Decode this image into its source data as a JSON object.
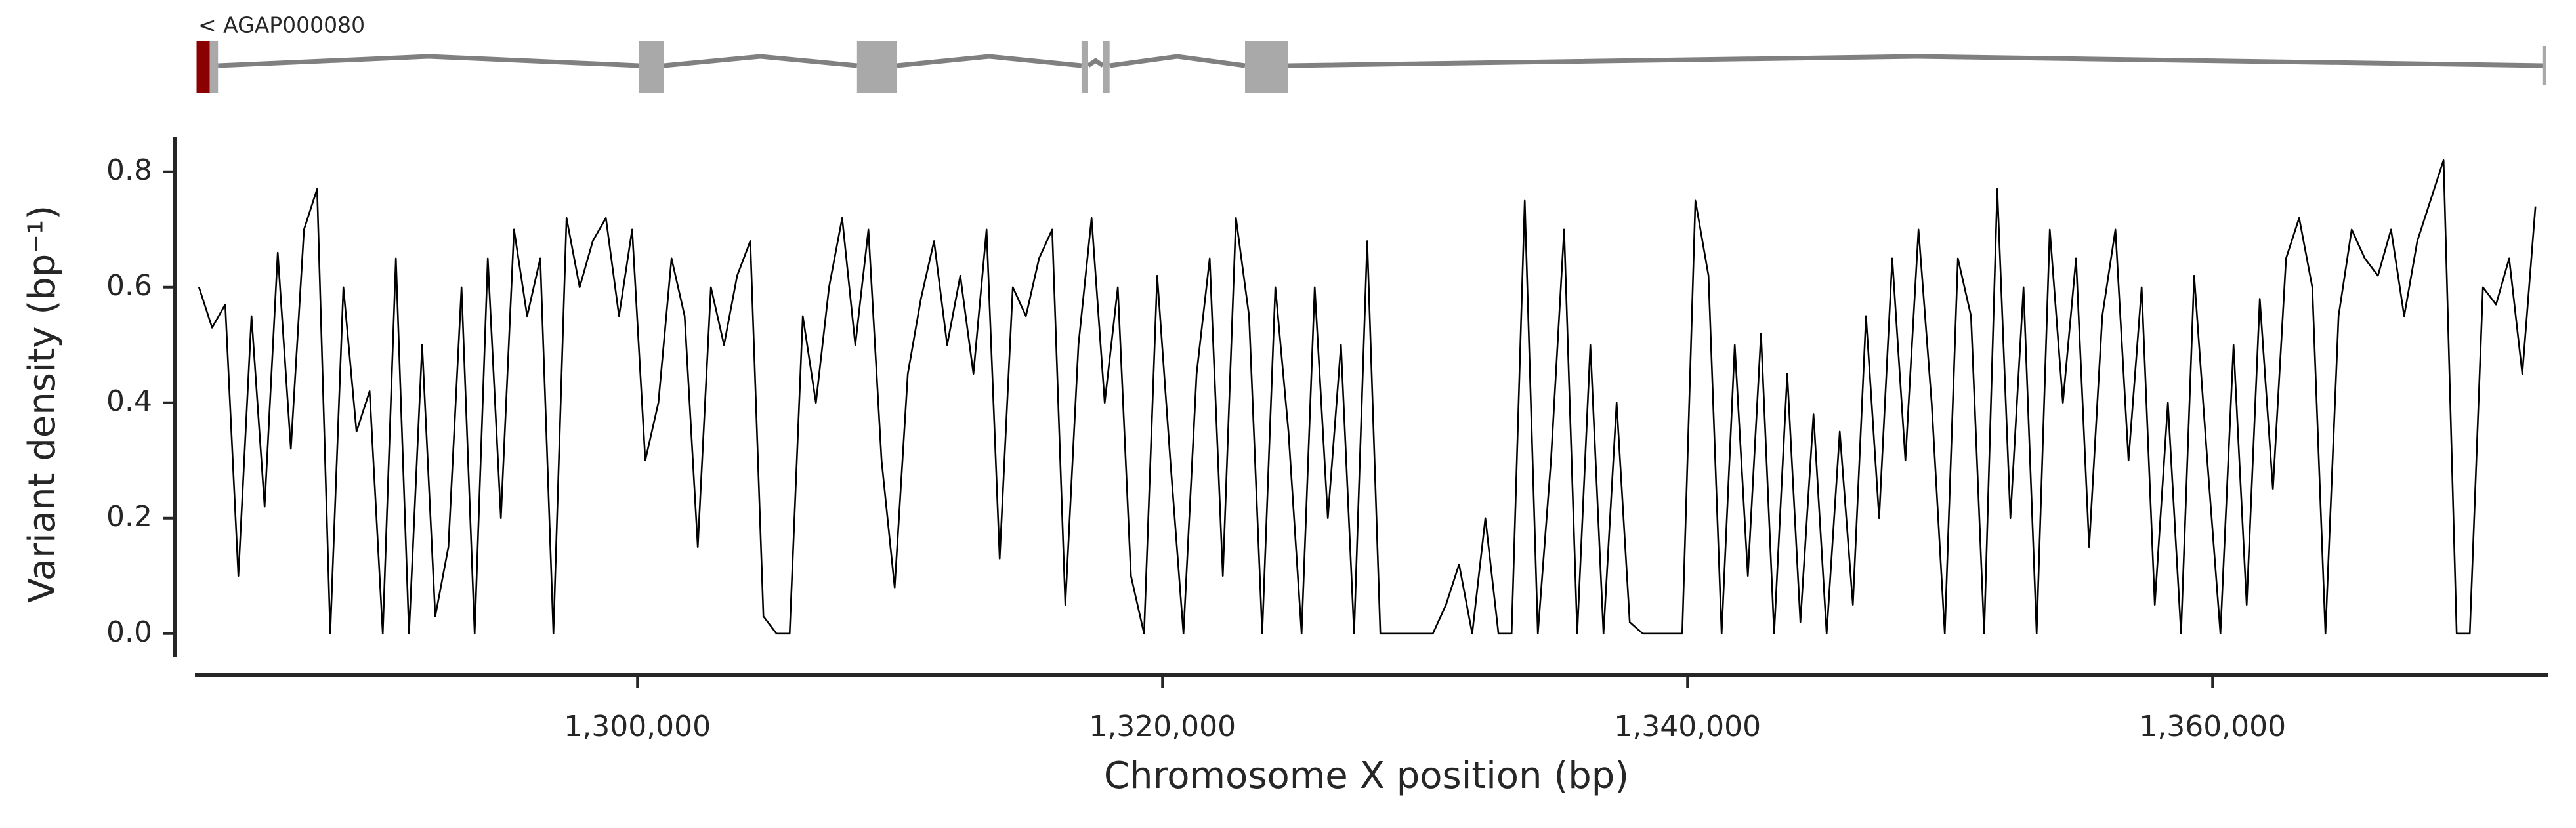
{
  "gene": {
    "label": "< AGAP000080",
    "start": 1283208,
    "end": 1372640,
    "line_color": "#808080",
    "exon_color": "#a9a9a9",
    "utr_color": "#8b0000",
    "exons": [
      [
        1283208,
        1283711
      ],
      [
        1283711,
        1284025
      ],
      [
        1300063,
        1301007
      ],
      [
        1308365,
        1309875
      ],
      [
        1316918,
        1317170
      ],
      [
        1317736,
        1317987
      ],
      [
        1323145,
        1324780
      ]
    ],
    "exon_kinds": [
      "utr",
      "exon",
      "exon",
      "exon",
      "exon",
      "exon",
      "exon"
    ]
  },
  "chart_data": {
    "type": "line",
    "xlabel": "Chromosome X position (bp)",
    "ylabel": "Variant density (bp⁻¹)",
    "xlim": [
      1283145,
      1372770
    ],
    "ylim": [
      -0.04,
      0.86
    ],
    "xticks": [
      {
        "value": 1300000,
        "label": "1,300,000"
      },
      {
        "value": 1320000,
        "label": "1,320,000"
      },
      {
        "value": 1340000,
        "label": "1,340,000"
      },
      {
        "value": 1360000,
        "label": "1,360,000"
      }
    ],
    "yticks": [
      {
        "value": 0,
        "label": "0.0"
      },
      {
        "value": 0.2,
        "label": "0.2"
      },
      {
        "value": 0.4,
        "label": "0.4"
      },
      {
        "value": 0.6,
        "label": "0.6"
      },
      {
        "value": 0.8,
        "label": "0.8"
      }
    ],
    "grid": false,
    "x": [
      1283300,
      1283800,
      1284300,
      1284800,
      1285300,
      1285800,
      1286300,
      1286800,
      1287300,
      1287800,
      1288300,
      1288800,
      1289300,
      1289800,
      1290300,
      1290800,
      1291300,
      1291800,
      1292300,
      1292800,
      1293300,
      1293800,
      1294300,
      1294800,
      1295300,
      1295800,
      1296300,
      1296800,
      1297300,
      1297800,
      1298300,
      1298800,
      1299300,
      1299800,
      1300300,
      1300800,
      1301300,
      1301800,
      1302300,
      1302800,
      1303300,
      1303800,
      1304300,
      1304800,
      1305300,
      1305800,
      1306300,
      1306800,
      1307300,
      1307800,
      1308300,
      1308800,
      1309300,
      1309800,
      1310300,
      1310800,
      1311300,
      1311800,
      1312300,
      1312800,
      1313300,
      1313800,
      1314300,
      1314800,
      1315300,
      1315800,
      1316300,
      1316800,
      1317300,
      1317800,
      1318300,
      1318800,
      1319300,
      1319800,
      1320300,
      1320800,
      1321300,
      1321800,
      1322300,
      1322800,
      1323300,
      1323800,
      1324300,
      1324800,
      1325300,
      1325800,
      1326300,
      1326800,
      1327300,
      1327800,
      1328300,
      1328800,
      1329300,
      1329800,
      1330300,
      1330800,
      1331300,
      1331800,
      1332300,
      1332800,
      1333300,
      1333800,
      1334300,
      1334800,
      1335300,
      1335800,
      1336300,
      1336800,
      1337300,
      1337800,
      1338300,
      1338800,
      1339300,
      1339800,
      1340300,
      1340800,
      1341300,
      1341800,
      1342300,
      1342800,
      1343300,
      1343800,
      1344300,
      1344800,
      1345300,
      1345800,
      1346300,
      1346800,
      1347300,
      1347800,
      1348300,
      1348800,
      1349300,
      1349800,
      1350300,
      1350800,
      1351300,
      1351800,
      1352300,
      1352800,
      1353300,
      1353800,
      1354300,
      1354800,
      1355300,
      1355800,
      1356300,
      1356800,
      1357300,
      1357800,
      1358300,
      1358800,
      1359300,
      1359800,
      1360300,
      1360800,
      1361300,
      1361800,
      1362300,
      1362800,
      1363300,
      1363800,
      1364300,
      1364800,
      1365300,
      1365800,
      1366300,
      1366800,
      1367300,
      1367800,
      1368300,
      1368800,
      1369300,
      1369800,
      1370300,
      1370800,
      1371300,
      1371800,
      1372300
    ],
    "series": [
      {
        "color": "#000000",
        "values": [
          0.6,
          0.53,
          0.57,
          0.1,
          0.55,
          0.22,
          0.66,
          0.32,
          0.7,
          0.77,
          0.0,
          0.6,
          0.35,
          0.42,
          0.0,
          0.65,
          0.0,
          0.5,
          0.03,
          0.15,
          0.6,
          0.0,
          0.65,
          0.2,
          0.7,
          0.55,
          0.65,
          0.0,
          0.72,
          0.6,
          0.68,
          0.72,
          0.55,
          0.7,
          0.3,
          0.4,
          0.65,
          0.55,
          0.15,
          0.6,
          0.5,
          0.62,
          0.68,
          0.03,
          0.0,
          0.0,
          0.55,
          0.4,
          0.6,
          0.72,
          0.5,
          0.7,
          0.3,
          0.08,
          0.45,
          0.58,
          0.68,
          0.5,
          0.62,
          0.45,
          0.7,
          0.13,
          0.6,
          0.55,
          0.65,
          0.7,
          0.05,
          0.5,
          0.72,
          0.4,
          0.6,
          0.1,
          0.0,
          0.62,
          0.3,
          0.0,
          0.45,
          0.65,
          0.1,
          0.72,
          0.55,
          0.0,
          0.6,
          0.35,
          0.0,
          0.6,
          0.2,
          0.5,
          0.0,
          0.68,
          0.0,
          0.0,
          0.0,
          0.0,
          0.0,
          0.05,
          0.12,
          0.0,
          0.2,
          0.0,
          0.0,
          0.75,
          0.0,
          0.3,
          0.7,
          0.0,
          0.5,
          0.0,
          0.4,
          0.02,
          0.0,
          0.0,
          0.0,
          0.0,
          0.75,
          0.62,
          0.0,
          0.5,
          0.1,
          0.52,
          0.0,
          0.45,
          0.02,
          0.38,
          0.0,
          0.35,
          0.05,
          0.55,
          0.2,
          0.65,
          0.3,
          0.7,
          0.4,
          0.0,
          0.65,
          0.55,
          0.0,
          0.77,
          0.2,
          0.6,
          0.0,
          0.7,
          0.4,
          0.65,
          0.15,
          0.55,
          0.7,
          0.3,
          0.6,
          0.05,
          0.4,
          0.0,
          0.62,
          0.3,
          0.0,
          0.5,
          0.05,
          0.58,
          0.25,
          0.65,
          0.72,
          0.6,
          0.0,
          0.55,
          0.7,
          0.65,
          0.62,
          0.7,
          0.55,
          0.68,
          0.75,
          0.82,
          0.0,
          0.0,
          0.6,
          0.57,
          0.65,
          0.45,
          0.74
        ]
      }
    ]
  }
}
